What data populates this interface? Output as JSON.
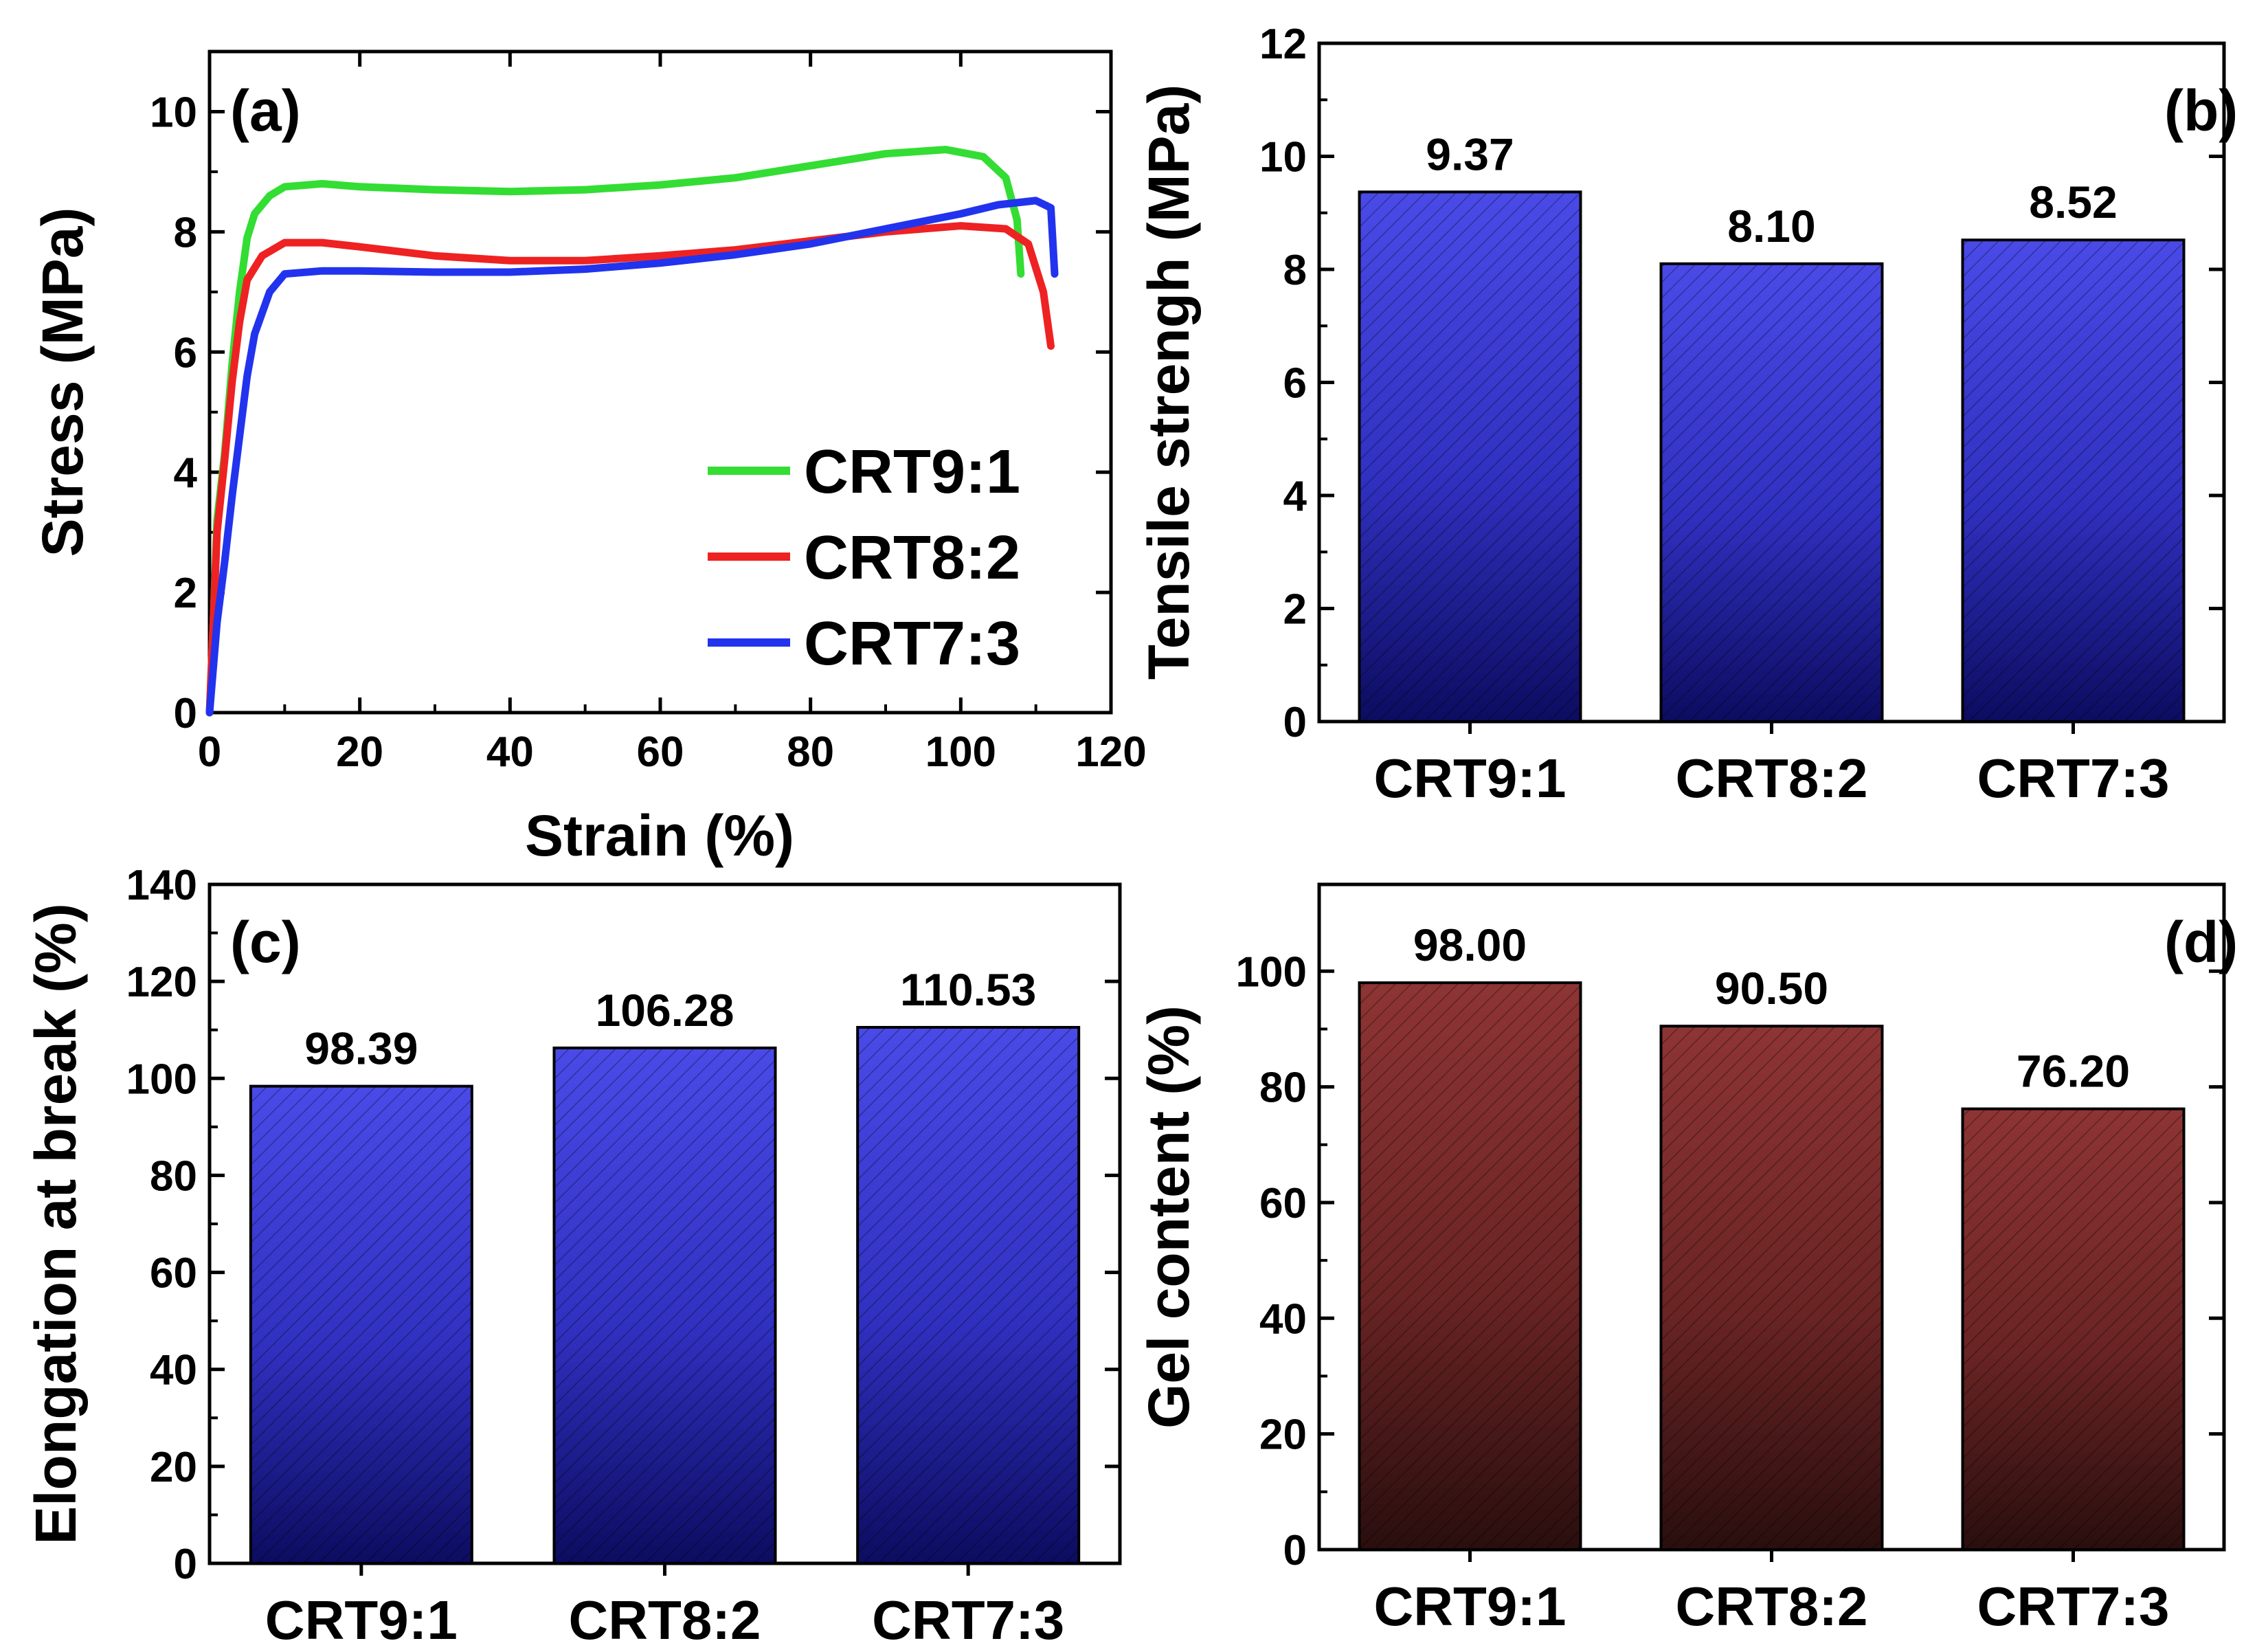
{
  "chart_data": [
    {
      "id": "a",
      "type": "line",
      "panel_label": "(a)",
      "xlabel": "Strain (%)",
      "ylabel": "Stress (MPa)",
      "xlim": [
        0,
        120
      ],
      "ylim": [
        0,
        11
      ],
      "xticks": [
        0,
        20,
        40,
        60,
        80,
        100,
        120
      ],
      "yticks": [
        0,
        2,
        4,
        6,
        8,
        10
      ],
      "legend_position": "lower-right",
      "series": [
        {
          "name": "CRT9:1",
          "color": "#33dd33",
          "points": [
            [
              0,
              0
            ],
            [
              0.5,
              1.5
            ],
            [
              1,
              3.2
            ],
            [
              2,
              4.3
            ],
            [
              3,
              5.8
            ],
            [
              4,
              7.0
            ],
            [
              5,
              7.9
            ],
            [
              6,
              8.3
            ],
            [
              8,
              8.6
            ],
            [
              10,
              8.75
            ],
            [
              15,
              8.8
            ],
            [
              20,
              8.75
            ],
            [
              30,
              8.7
            ],
            [
              40,
              8.67
            ],
            [
              50,
              8.7
            ],
            [
              60,
              8.78
            ],
            [
              70,
              8.9
            ],
            [
              80,
              9.1
            ],
            [
              90,
              9.3
            ],
            [
              98,
              9.37
            ],
            [
              103,
              9.25
            ],
            [
              106,
              8.9
            ],
            [
              107.5,
              8.2
            ],
            [
              108,
              7.3
            ]
          ]
        },
        {
          "name": "CRT8:2",
          "color": "#ee2222",
          "points": [
            [
              0,
              0
            ],
            [
              0.5,
              1.5
            ],
            [
              1,
              3.0
            ],
            [
              2,
              4.2
            ],
            [
              3,
              5.5
            ],
            [
              4,
              6.5
            ],
            [
              5,
              7.2
            ],
            [
              7,
              7.6
            ],
            [
              10,
              7.82
            ],
            [
              15,
              7.82
            ],
            [
              20,
              7.75
            ],
            [
              30,
              7.6
            ],
            [
              40,
              7.52
            ],
            [
              50,
              7.52
            ],
            [
              60,
              7.6
            ],
            [
              70,
              7.7
            ],
            [
              80,
              7.85
            ],
            [
              90,
              8.0
            ],
            [
              100,
              8.1
            ],
            [
              106,
              8.05
            ],
            [
              109,
              7.8
            ],
            [
              111,
              7.0
            ],
            [
              112,
              6.1
            ]
          ]
        },
        {
          "name": "CRT7:3",
          "color": "#2233ee",
          "points": [
            [
              0,
              0
            ],
            [
              1,
              1.5
            ],
            [
              2,
              2.5
            ],
            [
              3,
              3.6
            ],
            [
              4,
              4.6
            ],
            [
              5,
              5.6
            ],
            [
              6,
              6.3
            ],
            [
              8,
              7.0
            ],
            [
              10,
              7.3
            ],
            [
              15,
              7.35
            ],
            [
              20,
              7.35
            ],
            [
              30,
              7.33
            ],
            [
              40,
              7.33
            ],
            [
              50,
              7.38
            ],
            [
              60,
              7.48
            ],
            [
              70,
              7.62
            ],
            [
              80,
              7.8
            ],
            [
              90,
              8.05
            ],
            [
              100,
              8.3
            ],
            [
              105,
              8.45
            ],
            [
              110,
              8.52
            ],
            [
              112,
              8.4
            ],
            [
              112.5,
              7.3
            ]
          ]
        }
      ]
    },
    {
      "id": "b",
      "type": "bar",
      "panel_label": "(b)",
      "ylabel": "Tensile strengh (MPa)",
      "ylim": [
        0,
        12
      ],
      "yticks": [
        0,
        2,
        4,
        6,
        8,
        10,
        12
      ],
      "categories": [
        "CRT9:1",
        "CRT8:2",
        "CRT7:3"
      ],
      "values": [
        9.37,
        8.1,
        8.52
      ],
      "value_labels": [
        "9.37",
        "8.10",
        "8.52"
      ],
      "bar_color": "#3333cc"
    },
    {
      "id": "c",
      "type": "bar",
      "panel_label": "(c)",
      "ylabel": "Elongation at break (%)",
      "ylim": [
        0,
        140
      ],
      "yticks": [
        0,
        20,
        40,
        60,
        80,
        100,
        120,
        140
      ],
      "categories": [
        "CRT9:1",
        "CRT8:2",
        "CRT7:3"
      ],
      "values": [
        98.39,
        106.28,
        110.53
      ],
      "value_labels": [
        "98.39",
        "106.28",
        "110.53"
      ],
      "bar_color": "#3333cc"
    },
    {
      "id": "d",
      "type": "bar",
      "panel_label": "(d)",
      "ylabel": "Gel content (%)",
      "ylim": [
        0,
        115
      ],
      "yticks": [
        0,
        20,
        40,
        60,
        80,
        100
      ],
      "categories": [
        "CRT9:1",
        "CRT8:2",
        "CRT7:3"
      ],
      "values": [
        98.0,
        90.5,
        76.2
      ],
      "value_labels": [
        "98.00",
        "90.50",
        "76.20"
      ],
      "bar_color": "#7a2a2a"
    }
  ]
}
